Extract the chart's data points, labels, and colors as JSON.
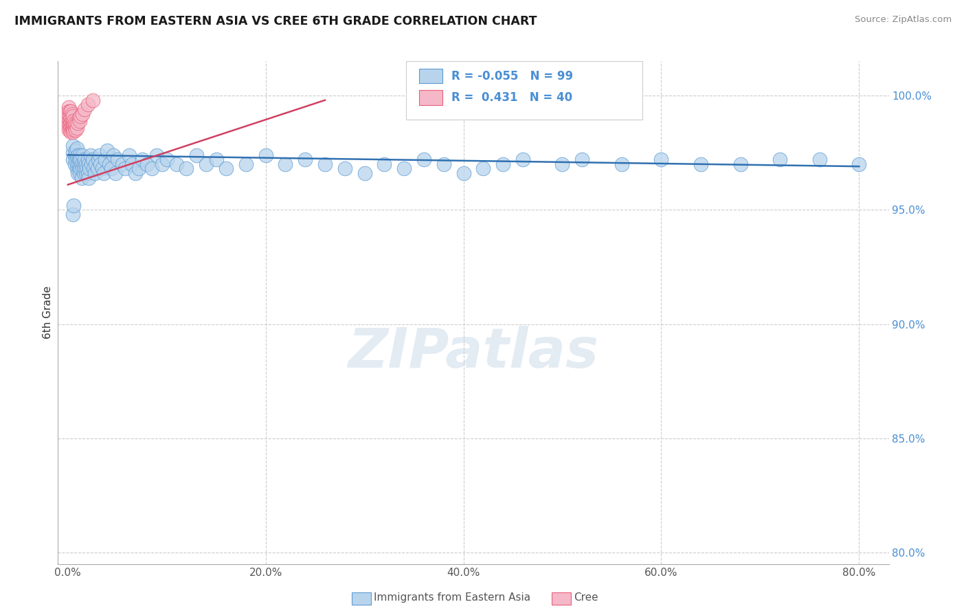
{
  "title": "IMMIGRANTS FROM EASTERN ASIA VS CREE 6TH GRADE CORRELATION CHART",
  "source": "Source: ZipAtlas.com",
  "ylabel": "6th Grade",
  "x_tick_labels": [
    "0.0%",
    "20.0%",
    "40.0%",
    "60.0%",
    "80.0%"
  ],
  "x_tick_positions": [
    0.0,
    0.2,
    0.4,
    0.6,
    0.8
  ],
  "y_tick_labels": [
    "100.0%",
    "95.0%",
    "90.0%",
    "85.0%",
    "80.0%"
  ],
  "y_tick_positions": [
    1.0,
    0.95,
    0.9,
    0.85,
    0.8
  ],
  "xlim": [
    -0.01,
    0.83
  ],
  "ylim": [
    0.795,
    1.015
  ],
  "blue_R": "-0.055",
  "blue_N": "99",
  "pink_R": "0.431",
  "pink_N": "40",
  "blue_fill": "#b8d4ec",
  "pink_fill": "#f5b8c8",
  "blue_edge": "#5b9bd5",
  "pink_edge": "#e8607a",
  "blue_line": "#3070b0",
  "pink_line": "#d04060",
  "grid_color": "#cccccc",
  "background_color": "#ffffff",
  "watermark": "ZIPatlas",
  "blue_line_x0": 0.0,
  "blue_line_y0": 0.974,
  "blue_line_x1": 0.8,
  "blue_line_y1": 0.969,
  "pink_line_x0": 0.0,
  "pink_line_y0": 0.961,
  "pink_line_x1": 0.26,
  "pink_line_y1": 0.998,
  "blue_x": [
    0.005,
    0.005,
    0.005,
    0.007,
    0.007,
    0.008,
    0.008,
    0.009,
    0.009,
    0.009,
    0.01,
    0.01,
    0.01,
    0.011,
    0.011,
    0.012,
    0.012,
    0.012,
    0.013,
    0.013,
    0.014,
    0.014,
    0.015,
    0.015,
    0.016,
    0.016,
    0.017,
    0.017,
    0.018,
    0.018,
    0.019,
    0.02,
    0.02,
    0.021,
    0.021,
    0.022,
    0.023,
    0.024,
    0.025,
    0.026,
    0.027,
    0.028,
    0.03,
    0.031,
    0.032,
    0.033,
    0.035,
    0.036,
    0.038,
    0.04,
    0.042,
    0.044,
    0.046,
    0.048,
    0.05,
    0.055,
    0.058,
    0.062,
    0.065,
    0.068,
    0.072,
    0.075,
    0.08,
    0.085,
    0.09,
    0.095,
    0.1,
    0.11,
    0.12,
    0.13,
    0.14,
    0.15,
    0.16,
    0.18,
    0.2,
    0.22,
    0.24,
    0.26,
    0.28,
    0.3,
    0.32,
    0.34,
    0.36,
    0.38,
    0.4,
    0.42,
    0.44,
    0.46,
    0.5,
    0.52,
    0.56,
    0.6,
    0.64,
    0.68,
    0.72,
    0.76,
    0.8,
    0.005,
    0.006
  ],
  "blue_y": [
    0.975,
    0.972,
    0.978,
    0.97,
    0.974,
    0.976,
    0.972,
    0.968,
    0.973,
    0.977,
    0.97,
    0.974,
    0.966,
    0.972,
    0.968,
    0.974,
    0.97,
    0.966,
    0.972,
    0.968,
    0.97,
    0.964,
    0.968,
    0.974,
    0.97,
    0.966,
    0.972,
    0.968,
    0.97,
    0.966,
    0.968,
    0.972,
    0.966,
    0.97,
    0.964,
    0.968,
    0.974,
    0.97,
    0.972,
    0.968,
    0.966,
    0.97,
    0.968,
    0.972,
    0.974,
    0.97,
    0.968,
    0.966,
    0.972,
    0.976,
    0.97,
    0.968,
    0.974,
    0.966,
    0.972,
    0.97,
    0.968,
    0.974,
    0.97,
    0.966,
    0.968,
    0.972,
    0.97,
    0.968,
    0.974,
    0.97,
    0.972,
    0.97,
    0.968,
    0.974,
    0.97,
    0.972,
    0.968,
    0.97,
    0.974,
    0.97,
    0.972,
    0.97,
    0.968,
    0.966,
    0.97,
    0.968,
    0.972,
    0.97,
    0.966,
    0.968,
    0.97,
    0.972,
    0.97,
    0.972,
    0.97,
    0.972,
    0.97,
    0.97,
    0.972,
    0.972,
    0.97,
    0.948,
    0.952
  ],
  "pink_x": [
    0.001,
    0.001,
    0.001,
    0.001,
    0.001,
    0.001,
    0.002,
    0.002,
    0.002,
    0.002,
    0.002,
    0.003,
    0.003,
    0.003,
    0.003,
    0.003,
    0.004,
    0.004,
    0.004,
    0.004,
    0.005,
    0.005,
    0.005,
    0.005,
    0.006,
    0.006,
    0.006,
    0.007,
    0.007,
    0.008,
    0.008,
    0.009,
    0.01,
    0.011,
    0.012,
    0.013,
    0.015,
    0.017,
    0.02,
    0.025
  ],
  "pink_y": [
    0.995,
    0.993,
    0.991,
    0.989,
    0.987,
    0.985,
    0.993,
    0.991,
    0.989,
    0.987,
    0.985,
    0.993,
    0.99,
    0.988,
    0.986,
    0.984,
    0.992,
    0.989,
    0.987,
    0.985,
    0.991,
    0.988,
    0.986,
    0.984,
    0.989,
    0.987,
    0.985,
    0.988,
    0.986,
    0.987,
    0.985,
    0.986,
    0.988,
    0.99,
    0.989,
    0.991,
    0.992,
    0.994,
    0.996,
    0.998
  ]
}
